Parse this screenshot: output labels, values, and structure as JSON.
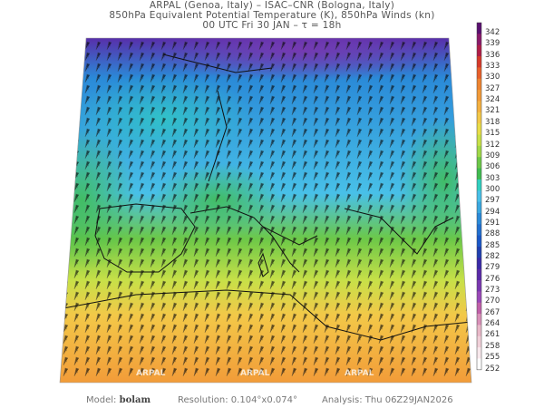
{
  "header": {
    "line1": "ARPAL (Genoa, Italy)  –  ISAC–CNR (Bologna, Italy)",
    "line2": "850hPa Equivalent Potential Temperature (K), 850hPa Winds (kn)",
    "line3": "00 UTC Fri 30 JAN  –  τ = 18h"
  },
  "colorbar": {
    "levels": [
      "342",
      "339",
      "336",
      "333",
      "330",
      "327",
      "324",
      "321",
      "318",
      "315",
      "312",
      "309",
      "306",
      "303",
      "300",
      "297",
      "294",
      "291",
      "288",
      "285",
      "282",
      "279",
      "276",
      "273",
      "270",
      "267",
      "264",
      "261",
      "258",
      "255",
      "252"
    ],
    "colors": [
      "#5a1070",
      "#8a1a6a",
      "#b01e48",
      "#d63a2a",
      "#e8602a",
      "#ee8430",
      "#f29a38",
      "#f4b040",
      "#f3c848",
      "#e8dc48",
      "#c8e048",
      "#a0d848",
      "#6cc848",
      "#40bc50",
      "#30d0c0",
      "#48c0e8",
      "#3aa8e0",
      "#2a8ad8",
      "#2270d0",
      "#1a58c8",
      "#2040b0",
      "#3a2aa8",
      "#5a2aa8",
      "#7a38b0",
      "#9a48b8",
      "#c060a8",
      "#d890b8",
      "#e8b8c8",
      "#f0d0d8",
      "#f8e8ec",
      "#ffffff"
    ]
  },
  "map": {
    "watermarks": [
      "ARPAL",
      "ARPAL",
      "ARPAL"
    ]
  },
  "footer": {
    "model_label": "Model:",
    "model_value": "bolam",
    "resolution": "Resolution: 0.104°x0.074°",
    "analysis": "Analysis: Thu  06Z29JAN2026"
  }
}
